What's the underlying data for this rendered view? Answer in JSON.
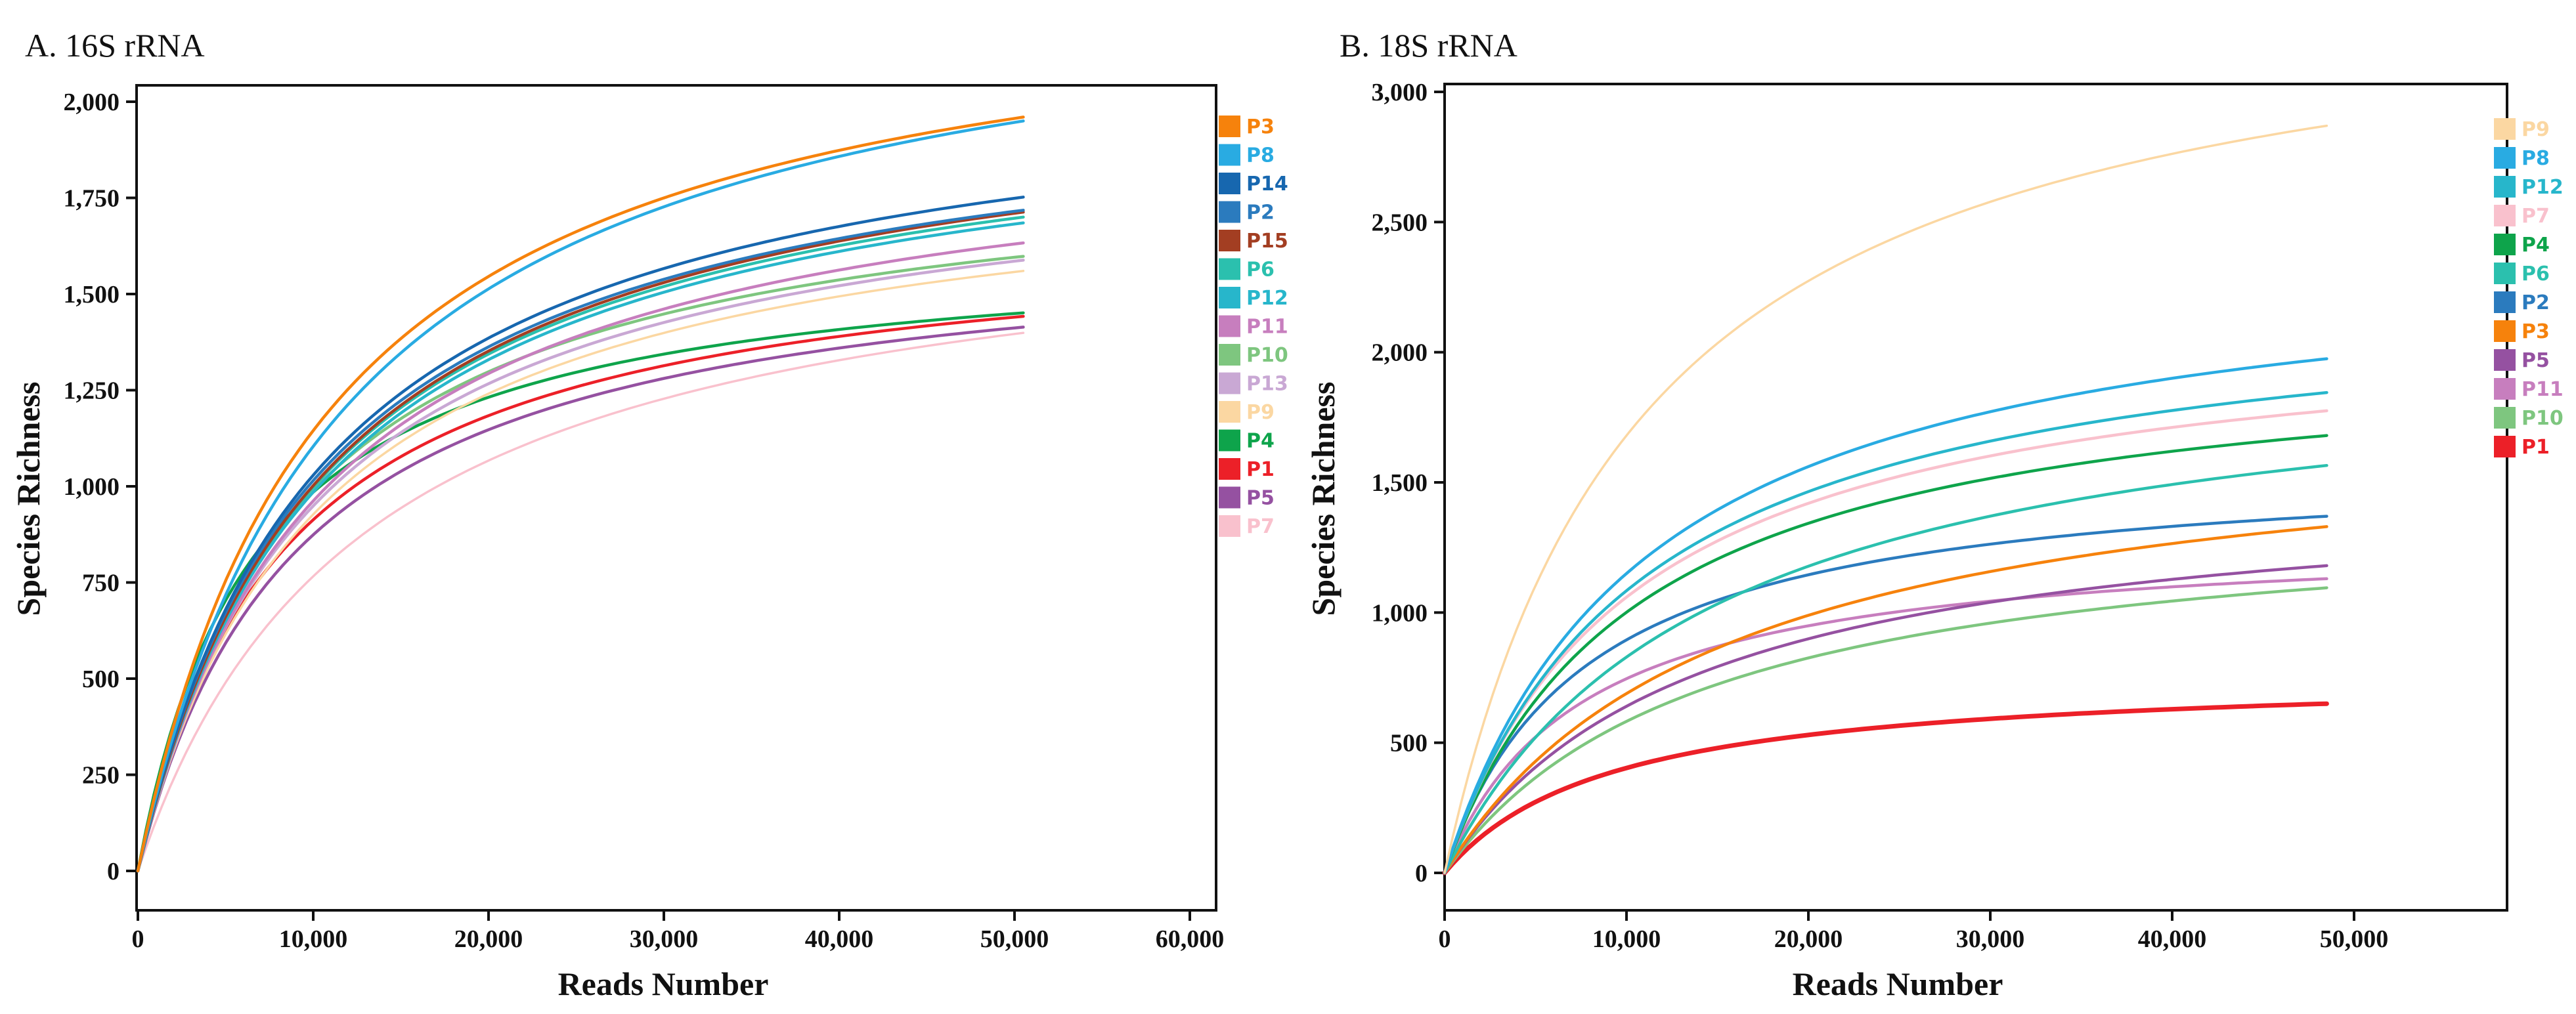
{
  "figure": {
    "description": "Rarefaction curves of species richness versus sequencing reads number for 16S rRNA and 18S rRNA datasets, samples P1-P15",
    "legend_position": "right"
  },
  "chart_data": [
    {
      "type": "line",
      "panel": "A",
      "title": "A. 16S rRNA",
      "xlabel": "Reads Number",
      "ylabel": "Species Richness",
      "x_axis": {
        "min": 0,
        "tick_step": 10000,
        "tick_max": 60000,
        "tick_labels": [
          "0",
          "10,000",
          "20,000",
          "30,000",
          "40,000",
          "50,000",
          "60,000"
        ]
      },
      "y_axis": {
        "min": 0,
        "max": 2000,
        "tick_step": 250,
        "tick_labels": [
          "0",
          "250",
          "500",
          "750",
          "1,000",
          "1,250",
          "1,500",
          "1,750",
          "2,000"
        ]
      },
      "reads_max": 50500,
      "series": [
        {
          "label": "P3",
          "color": "#F6820C",
          "final_richness": 1960,
          "richness_at_10000_reads": 1145
        },
        {
          "label": "P8",
          "color": "#29ABE2",
          "final_richness": 1950,
          "richness_at_10000_reads": 1104
        },
        {
          "label": "P14",
          "color": "#1767AF",
          "final_richness": 1752,
          "richness_at_10000_reads": 1029
        },
        {
          "label": "P2",
          "color": "#2B7BBE",
          "final_richness": 1718,
          "richness_at_10000_reads": 1015
        },
        {
          "label": "P15",
          "color": "#A33E22",
          "final_richness": 1713,
          "richness_at_10000_reads": 1002
        },
        {
          "label": "P6",
          "color": "#2BC0AE",
          "final_richness": 1700,
          "richness_at_10000_reads": 998
        },
        {
          "label": "P12",
          "color": "#27B6CB",
          "final_richness": 1685,
          "richness_at_10000_reads": 985
        },
        {
          "label": "P11",
          "color": "#C77EBE",
          "final_richness": 1633,
          "richness_at_10000_reads": 962
        },
        {
          "label": "P10",
          "color": "#7EC67F",
          "final_richness": 1598,
          "richness_at_10000_reads": 990
        },
        {
          "label": "P13",
          "color": "#C9A8D4",
          "final_richness": 1588,
          "richness_at_10000_reads": 949
        },
        {
          "label": "P9",
          "color": "#FBD7A2",
          "final_richness": 1560,
          "richness_at_10000_reads": 927,
          "line_width": 3.5
        },
        {
          "label": "P4",
          "color": "#0EA44B",
          "final_richness": 1451,
          "richness_at_10000_reads": 985
        },
        {
          "label": "P1",
          "color": "#EC2028",
          "final_richness": 1442,
          "richness_at_10000_reads": 913
        },
        {
          "label": "P5",
          "color": "#9551A1",
          "final_richness": 1414,
          "richness_at_10000_reads": 874
        },
        {
          "label": "P7",
          "color": "#F9C1CD",
          "final_richness": 1399,
          "richness_at_10000_reads": 766,
          "line_width": 3.5
        }
      ]
    },
    {
      "type": "line",
      "panel": "B",
      "title": "B. 18S rRNA",
      "xlabel": "Reads Number",
      "ylabel": "Species Richness",
      "x_axis": {
        "min": 0,
        "tick_step": 10000,
        "tick_max": 50000,
        "tick_labels": [
          "0",
          "10,000",
          "20,000",
          "30,000",
          "40,000",
          "50,000"
        ]
      },
      "y_axis": {
        "min": 0,
        "max": 3000,
        "tick_step": 500,
        "tick_labels": [
          "0",
          "500",
          "1,000",
          "1,500",
          "2,000",
          "2,500",
          "3,000"
        ]
      },
      "reads_max": 48500,
      "series": [
        {
          "label": "P9",
          "color": "#FBD7A2",
          "final_richness": 2870,
          "richness_at_10000_reads": 1680,
          "line_width": 3.5
        },
        {
          "label": "P8",
          "color": "#29ABE2",
          "final_richness": 1975,
          "richness_at_10000_reads": 1150
        },
        {
          "label": "P12",
          "color": "#27B6CB",
          "final_richness": 1845,
          "richness_at_10000_reads": 1084
        },
        {
          "label": "P7",
          "color": "#F9C1CD",
          "final_richness": 1775,
          "richness_at_10000_reads": 1059
        },
        {
          "label": "P4",
          "color": "#0EA44B",
          "final_richness": 1680,
          "richness_at_10000_reads": 1001
        },
        {
          "label": "P6",
          "color": "#2BC0AE",
          "final_richness": 1565,
          "richness_at_10000_reads": 829
        },
        {
          "label": "P2",
          "color": "#2B7BBE",
          "final_richness": 1370,
          "richness_at_10000_reads": 895
        },
        {
          "label": "P3",
          "color": "#F6820C",
          "final_richness": 1330,
          "richness_at_10000_reads": 689
        },
        {
          "label": "P5",
          "color": "#9551A1",
          "final_richness": 1180,
          "richness_at_10000_reads": 640
        },
        {
          "label": "P11",
          "color": "#C77EBE",
          "final_richness": 1130,
          "richness_at_10000_reads": 746
        },
        {
          "label": "P10",
          "color": "#7EC67F",
          "final_richness": 1095,
          "richness_at_10000_reads": 582
        },
        {
          "label": "P1",
          "color": "#EC2028",
          "final_richness": 650,
          "richness_at_10000_reads": 403,
          "line_width": 7
        }
      ]
    }
  ]
}
